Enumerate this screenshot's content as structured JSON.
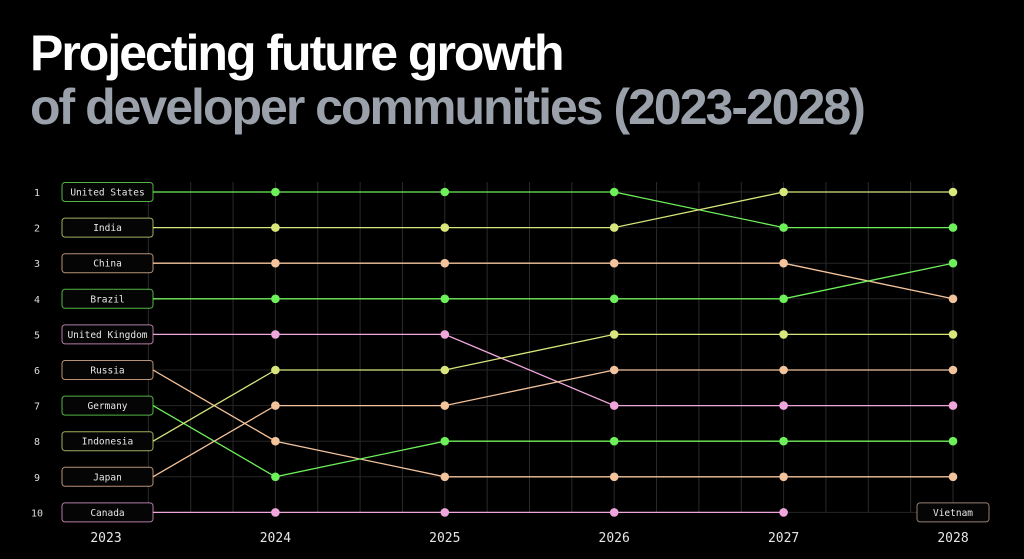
{
  "title_line1": "Projecting future growth",
  "title_line2": "of developer communities (2023-2028)",
  "chart_data": {
    "type": "bump",
    "years": [
      "2023",
      "2024",
      "2025",
      "2026",
      "2027",
      "2028"
    ],
    "ranks": [
      1,
      2,
      3,
      4,
      5,
      6,
      7,
      8,
      9,
      10
    ],
    "grid": true,
    "series": [
      {
        "name": "United States",
        "color": "#6ef05a",
        "ranks": [
          1,
          1,
          1,
          1,
          2,
          2
        ]
      },
      {
        "name": "India",
        "color": "#d8e67c",
        "ranks": [
          2,
          2,
          2,
          2,
          1,
          1
        ]
      },
      {
        "name": "China",
        "color": "#f3c39c",
        "ranks": [
          3,
          3,
          3,
          3,
          3,
          4
        ]
      },
      {
        "name": "Brazil",
        "color": "#6ef05a",
        "ranks": [
          4,
          4,
          4,
          4,
          4,
          3
        ]
      },
      {
        "name": "United Kingdom",
        "color": "#f0a6dc",
        "ranks": [
          5,
          5,
          5,
          7,
          7,
          7
        ]
      },
      {
        "name": "Russia",
        "color": "#f3c39c",
        "ranks": [
          6,
          8,
          9,
          9,
          9,
          9
        ]
      },
      {
        "name": "Germany",
        "color": "#6ef05a",
        "ranks": [
          7,
          9,
          8,
          8,
          8,
          8
        ]
      },
      {
        "name": "Indonesia",
        "color": "#d8e67c",
        "ranks": [
          8,
          6,
          6,
          5,
          5,
          5
        ]
      },
      {
        "name": "Japan",
        "color": "#f3c39c",
        "ranks": [
          9,
          7,
          7,
          6,
          6,
          6
        ]
      },
      {
        "name": "Canada",
        "color": "#f0a6dc",
        "ranks": [
          10,
          10,
          10,
          10,
          10,
          null
        ]
      },
      {
        "name": "Vietnam",
        "color": "#c9a99a",
        "ranks": [
          null,
          null,
          null,
          null,
          null,
          10
        ]
      }
    ]
  }
}
